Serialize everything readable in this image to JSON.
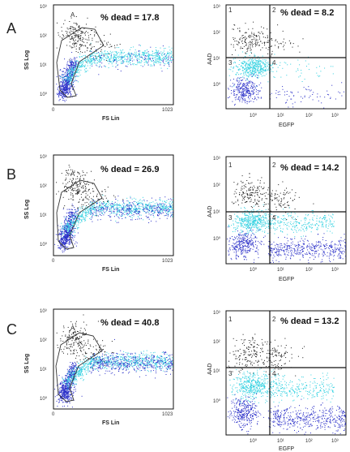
{
  "figure": {
    "rows": [
      {
        "letter": "A",
        "fs_panel": {
          "label": "% dead = 17.8",
          "gate_label": "A",
          "xlabel": "FS Lin",
          "ylabel": "SS Log",
          "x_ticks": [
            "0",
            "1023"
          ],
          "y_ticks": [
            "10⁰",
            "10¹",
            "10²",
            "10³"
          ]
        },
        "egfp_panel": {
          "label": "% dead = 8.2",
          "xlabel": "EGFP",
          "ylabel": "AAD",
          "x_ticks": [
            "10⁰",
            "10¹",
            "10²",
            "10³"
          ],
          "y_ticks": [
            "10⁰",
            "10¹",
            "10²",
            "10³"
          ],
          "quadrants": [
            "1",
            "2",
            "3",
            "4"
          ]
        }
      },
      {
        "letter": "B",
        "fs_panel": {
          "label": "% dead = 26.9",
          "gate_label": "A",
          "xlabel": "FS Lin",
          "ylabel": "SS Log",
          "x_ticks": [
            "0",
            "1023"
          ],
          "y_ticks": [
            "10⁰",
            "10¹",
            "10²",
            "10³"
          ]
        },
        "egfp_panel": {
          "label": "% dead = 14.2",
          "xlabel": "EGFP",
          "ylabel": "AAD",
          "x_ticks": [
            "10⁰",
            "10¹",
            "10²",
            "10³"
          ],
          "y_ticks": [
            "10⁰",
            "10¹",
            "10²",
            "10³"
          ],
          "quadrants": [
            "1",
            "2",
            "3",
            "4"
          ]
        }
      },
      {
        "letter": "C",
        "fs_panel": {
          "label": "% dead = 40.8",
          "gate_label": "A",
          "xlabel": "FS Lin",
          "ylabel": "SS Log",
          "x_ticks": [
            "0",
            "1023"
          ],
          "y_ticks": [
            "10⁰",
            "10¹",
            "10²",
            "10³"
          ]
        },
        "egfp_panel": {
          "label": "% dead = 13.2",
          "xlabel": "EGFP",
          "ylabel": "AAD",
          "x_ticks": [
            "10⁰",
            "10¹",
            "10²",
            "10³"
          ],
          "y_ticks": [
            "10⁰",
            "10¹",
            "10²",
            "10³"
          ],
          "quadrants": [
            "1",
            "2",
            "3",
            "4"
          ]
        }
      }
    ]
  },
  "chart_data": [
    {
      "type": "scatter",
      "panel": "A-left",
      "title": "% dead = 17.8",
      "xlabel": "FS Lin",
      "ylabel": "SS Log",
      "xlim": [
        0,
        1023
      ],
      "ylim": [
        1,
        1000
      ],
      "yscale": "log",
      "percent_dead": 17.8,
      "gate": "A"
    },
    {
      "type": "scatter",
      "panel": "A-right",
      "title": "% dead = 8.2",
      "xlabel": "EGFP",
      "ylabel": "AAD",
      "xlim": [
        0.1,
        1000
      ],
      "ylim": [
        0.1,
        1000
      ],
      "xscale": "log",
      "yscale": "log",
      "percent_dead": 8.2,
      "quadrants": [
        "1",
        "2",
        "3",
        "4"
      ]
    },
    {
      "type": "scatter",
      "panel": "B-left",
      "title": "% dead = 26.9",
      "xlabel": "FS Lin",
      "ylabel": "SS Log",
      "xlim": [
        0,
        1023
      ],
      "ylim": [
        1,
        1000
      ],
      "yscale": "log",
      "percent_dead": 26.9,
      "gate": "A"
    },
    {
      "type": "scatter",
      "panel": "B-right",
      "title": "% dead = 14.2",
      "xlabel": "EGFP",
      "ylabel": "AAD",
      "xlim": [
        0.1,
        1000
      ],
      "ylim": [
        0.1,
        1000
      ],
      "xscale": "log",
      "yscale": "log",
      "percent_dead": 14.2,
      "quadrants": [
        "1",
        "2",
        "3",
        "4"
      ]
    },
    {
      "type": "scatter",
      "panel": "C-left",
      "title": "% dead = 40.8",
      "xlabel": "FS Lin",
      "ylabel": "SS Log",
      "xlim": [
        0,
        1023
      ],
      "ylim": [
        1,
        1000
      ],
      "yscale": "log",
      "percent_dead": 40.8,
      "gate": "A"
    },
    {
      "type": "scatter",
      "panel": "C-right",
      "title": "% dead = 13.2",
      "xlabel": "EGFP",
      "ylabel": "AAD",
      "xlim": [
        0.1,
        1000
      ],
      "ylim": [
        0.1,
        1000
      ],
      "xscale": "log",
      "yscale": "log",
      "percent_dead": 13.2,
      "quadrants": [
        "1",
        "2",
        "3",
        "4"
      ]
    }
  ],
  "colors": {
    "black": "#1a1a1a",
    "cyan": "#2fd0e0",
    "blue": "#2a2fc8",
    "frame": "#111111"
  }
}
